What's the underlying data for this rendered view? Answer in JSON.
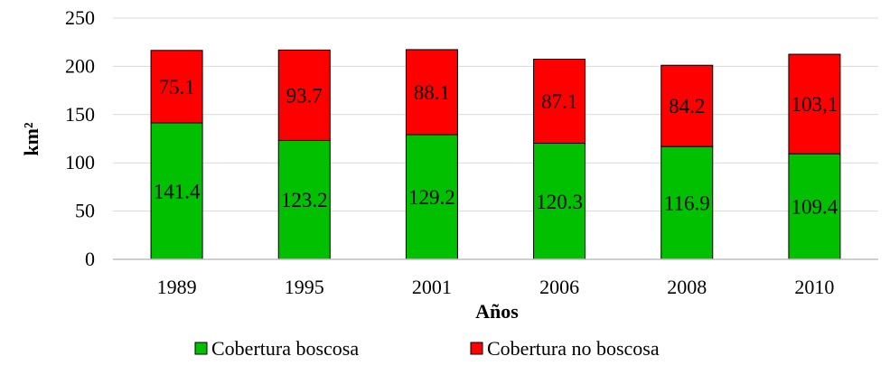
{
  "chart_data": {
    "type": "bar",
    "stacked": true,
    "title": "",
    "xlabel": "Años",
    "ylabel": "km²",
    "ylim": [
      0,
      250
    ],
    "yticks": [
      "0",
      "50",
      "100",
      "150",
      "200",
      "250"
    ],
    "grid": true,
    "legend_position": "bottom",
    "categories": [
      "1989",
      "1995",
      "2001",
      "2006",
      "2008",
      "2010"
    ],
    "series": [
      {
        "name": "Cobertura boscosa",
        "color": "#00c000",
        "values": [
          141.4,
          123.2,
          129.2,
          120.3,
          116.9,
          109.4
        ],
        "labels": [
          "141.4",
          "123.2",
          "129.2",
          "120.3",
          "116.9",
          "109.4"
        ]
      },
      {
        "name": "Cobertura no boscosa",
        "color": "#ff0000",
        "values": [
          75.1,
          93.7,
          88.1,
          87.1,
          84.2,
          103.1
        ],
        "labels": [
          "75.1",
          "93.7",
          "88.1",
          "87.1",
          "84.2",
          "103,1"
        ]
      }
    ]
  }
}
